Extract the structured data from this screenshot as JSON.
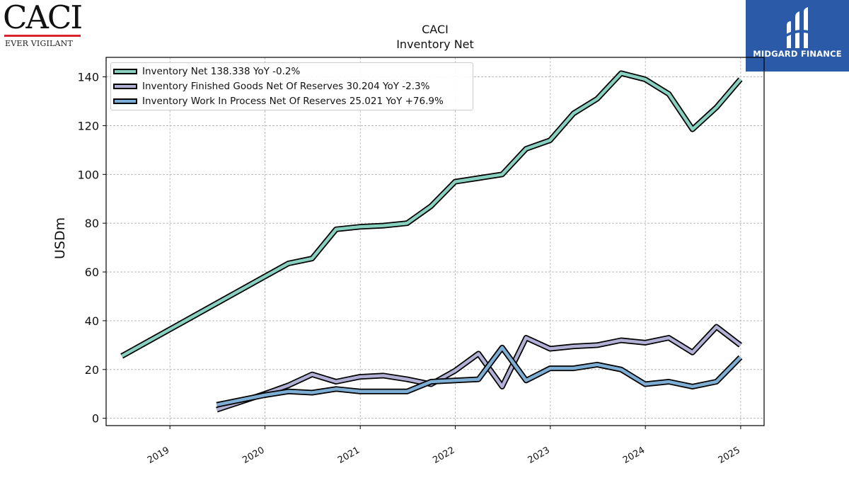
{
  "logos": {
    "caci_wordmark": "CACI",
    "caci_tagline": "EVER VIGILANT",
    "badge_text": "MIDGARD FINANCE",
    "badge_color": "#2b5aa8"
  },
  "chart_data": {
    "type": "line",
    "title": "CACI",
    "subtitle": "Inventory Net",
    "ylabel": "USDm",
    "xlabel": "",
    "ylim": [
      -3,
      148
    ],
    "xlim": [
      "2018-05-01",
      "2025-04-01"
    ],
    "yticks": [
      0,
      20,
      40,
      60,
      80,
      100,
      120,
      140
    ],
    "xticks": [
      "2019",
      "2020",
      "2021",
      "2022",
      "2023",
      "2024",
      "2025"
    ],
    "grid": true,
    "legend_position": "top-left",
    "series": [
      {
        "name": "Inventory Net",
        "legend": "Inventory Net  138.338 YoY -0.2%",
        "color": "#88d0bf",
        "points": [
          [
            "2018-06-30",
            25.5
          ],
          [
            "2020-03-31",
            63.5
          ],
          [
            "2020-06-30",
            65.5
          ],
          [
            "2020-09-30",
            77.5
          ],
          [
            "2020-12-31",
            78.5
          ],
          [
            "2021-03-31",
            79.0
          ],
          [
            "2021-06-30",
            80.0
          ],
          [
            "2021-09-30",
            87.0
          ],
          [
            "2021-12-31",
            97.0
          ],
          [
            "2022-03-31",
            98.5
          ],
          [
            "2022-06-30",
            100.0
          ],
          [
            "2022-09-30",
            110.5
          ],
          [
            "2022-12-31",
            114.0
          ],
          [
            "2023-03-31",
            125.0
          ],
          [
            "2023-06-30",
            131.0
          ],
          [
            "2023-09-30",
            141.5
          ],
          [
            "2023-12-31",
            139.0
          ],
          [
            "2024-03-31",
            133.0
          ],
          [
            "2024-06-30",
            118.5
          ],
          [
            "2024-09-30",
            127.5
          ],
          [
            "2024-12-31",
            139.0
          ]
        ]
      },
      {
        "name": "Inventory Finished Goods Net Of Reserves",
        "legend": "Inventory Finished Goods Net Of Reserves  30.204 YoY -2.3%",
        "color": "#b3b0d6",
        "points": [
          [
            "2019-06-30",
            3.5
          ],
          [
            "2019-12-31",
            10.0
          ],
          [
            "2020-03-31",
            13.5
          ],
          [
            "2020-06-30",
            18.0
          ],
          [
            "2020-09-30",
            15.0
          ],
          [
            "2020-12-31",
            17.0
          ],
          [
            "2021-03-31",
            17.5
          ],
          [
            "2021-06-30",
            16.0
          ],
          [
            "2021-09-30",
            14.0
          ],
          [
            "2021-12-31",
            19.5
          ],
          [
            "2022-03-31",
            26.5
          ],
          [
            "2022-06-30",
            13.0
          ],
          [
            "2022-09-30",
            33.0
          ],
          [
            "2022-12-31",
            28.5
          ],
          [
            "2023-03-31",
            29.5
          ],
          [
            "2023-06-30",
            30.0
          ],
          [
            "2023-09-30",
            32.0
          ],
          [
            "2023-12-31",
            31.0
          ],
          [
            "2024-03-31",
            33.0
          ],
          [
            "2024-06-30",
            27.0
          ],
          [
            "2024-09-30",
            37.5
          ],
          [
            "2024-12-31",
            30.0
          ]
        ]
      },
      {
        "name": "Inventory Work In Process Net Of Reserves",
        "legend": "Inventory Work In Process Net Of Reserves  25.021 YoY +76.9%",
        "color": "#7eaed3",
        "points": [
          [
            "2019-06-30",
            5.5
          ],
          [
            "2019-12-31",
            9.5
          ],
          [
            "2020-03-31",
            11.0
          ],
          [
            "2020-06-30",
            10.5
          ],
          [
            "2020-09-30",
            12.0
          ],
          [
            "2020-12-31",
            11.0
          ],
          [
            "2021-03-31",
            11.0
          ],
          [
            "2021-06-30",
            11.0
          ],
          [
            "2021-09-30",
            15.0
          ],
          [
            "2021-12-31",
            15.5
          ],
          [
            "2022-03-31",
            16.0
          ],
          [
            "2022-06-30",
            29.0
          ],
          [
            "2022-09-30",
            15.5
          ],
          [
            "2022-12-31",
            20.5
          ],
          [
            "2023-03-31",
            20.5
          ],
          [
            "2023-06-30",
            22.0
          ],
          [
            "2023-09-30",
            20.0
          ],
          [
            "2023-12-31",
            14.0
          ],
          [
            "2024-03-31",
            15.0
          ],
          [
            "2024-06-30",
            13.0
          ],
          [
            "2024-09-30",
            15.0
          ],
          [
            "2024-12-31",
            25.0
          ]
        ]
      }
    ]
  }
}
